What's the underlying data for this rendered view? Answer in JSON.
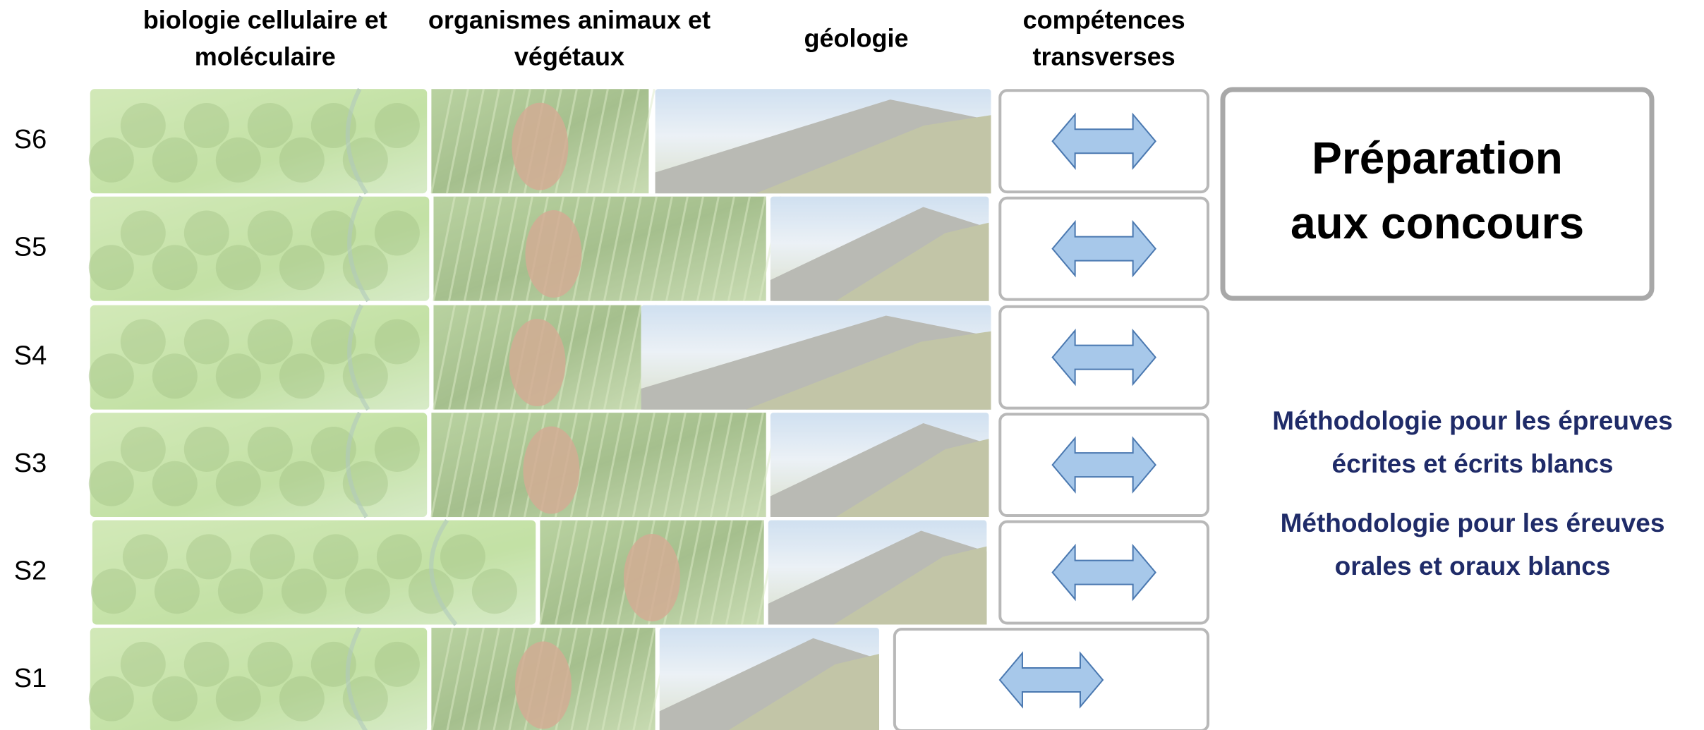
{
  "columns": [
    {
      "lines": [
        "biologie cellulaire et",
        "moléculaire"
      ]
    },
    {
      "lines": [
        "organismes animaux et",
        "végétaux"
      ]
    },
    {
      "lines": [
        "géologie"
      ]
    },
    {
      "lines": [
        "compétences",
        "transverses"
      ]
    }
  ],
  "rows": [
    "S6",
    "S5",
    "S4",
    "S3",
    "S2",
    "S1"
  ],
  "concours": {
    "lines": [
      "Préparation",
      "aux concours"
    ]
  },
  "methodology": [
    {
      "lines": [
        "Méthodologie pour les épreuves",
        "écrites et écrits blancs"
      ]
    },
    {
      "lines": [
        "Méthodologie pour les éreuves",
        "orales et oraux blancs"
      ]
    }
  ]
}
